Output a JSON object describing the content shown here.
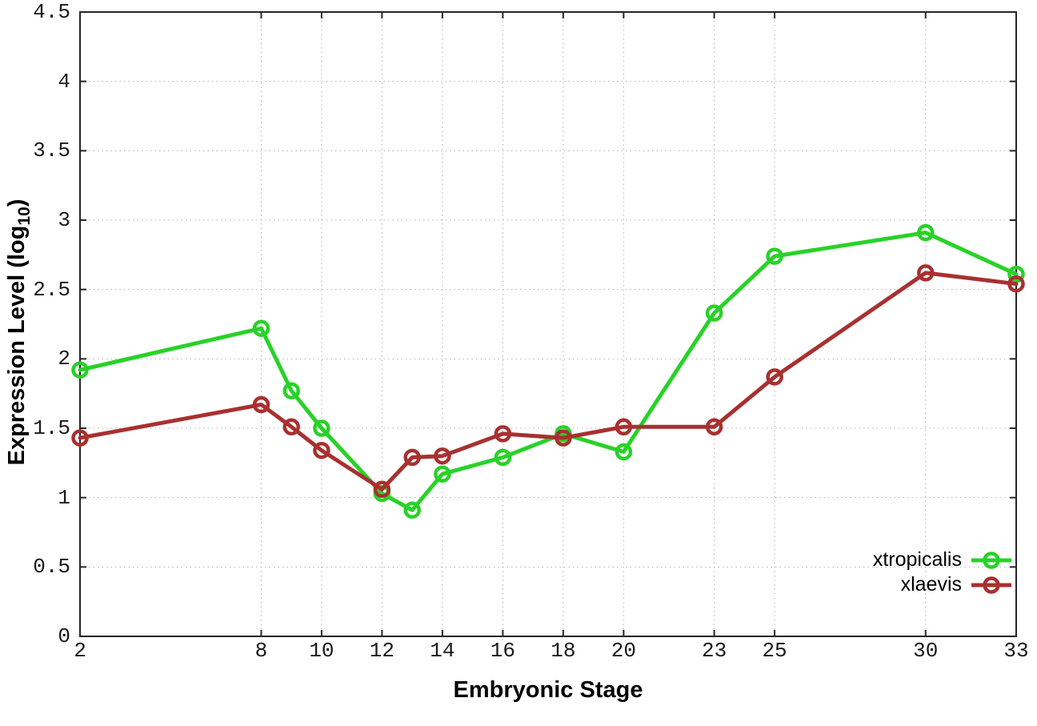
{
  "chart_data": {
    "type": "line",
    "x": [
      2,
      8,
      9,
      10,
      12,
      13,
      14,
      16,
      18,
      20,
      23,
      25,
      30,
      33
    ],
    "series": [
      {
        "name": "xtropicalis",
        "color": "#28d228",
        "values": [
          1.92,
          2.22,
          1.77,
          1.5,
          1.03,
          0.91,
          1.17,
          1.29,
          1.46,
          1.33,
          2.33,
          2.74,
          2.91,
          2.61
        ]
      },
      {
        "name": "xlaevis",
        "color": "#a93030",
        "values": [
          1.43,
          1.67,
          1.51,
          1.34,
          1.06,
          1.29,
          1.3,
          1.46,
          1.43,
          1.51,
          1.51,
          1.87,
          2.62,
          2.54
        ]
      }
    ],
    "title": "",
    "xlabel": "Embryonic Stage",
    "ylabel": "Expression Level (log10)",
    "ylabel_parts": {
      "prefix": "Expression Level (log",
      "sub": "10",
      "suffix": ")"
    },
    "xlim": [
      2,
      33
    ],
    "ylim": [
      0,
      4.5
    ],
    "x_tick_values": [
      2,
      8,
      10,
      12,
      14,
      16,
      18,
      20,
      23,
      25,
      30,
      33
    ],
    "x_tick_labels": [
      "2",
      "8",
      "10",
      "12",
      "14",
      "16",
      "18",
      "20",
      "23",
      "25",
      "30",
      "33"
    ],
    "y_tick_values": [
      0,
      0.5,
      1,
      1.5,
      2,
      2.5,
      3,
      3.5,
      4,
      4.5
    ],
    "y_tick_labels": [
      "0",
      "0.5",
      "1",
      "1.5",
      "2",
      "2.5",
      "3",
      "3.5",
      "4",
      "4.5"
    ],
    "grid": true,
    "marker": "open-circle",
    "legend_position": "bottom-right"
  },
  "colors": {
    "background": "#ffffff",
    "grid": "#b0b0b0",
    "border": "#262626",
    "tick_text": "#1a1a1a",
    "series_green": "#28d228",
    "series_red": "#a93030"
  }
}
